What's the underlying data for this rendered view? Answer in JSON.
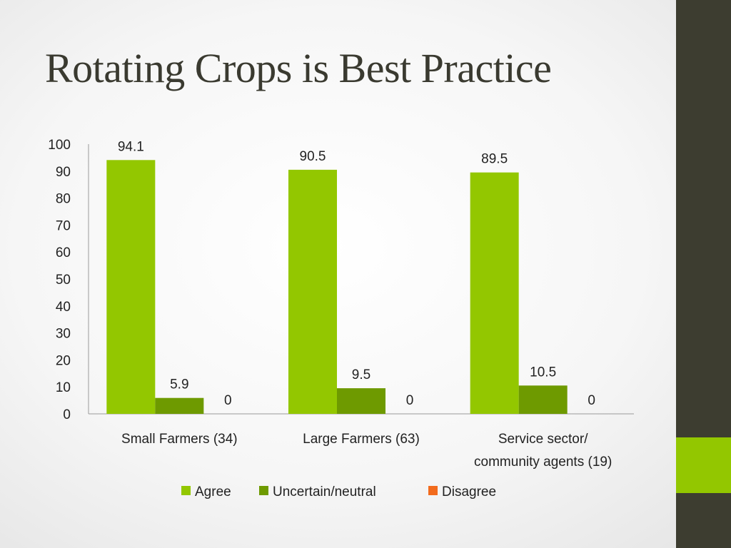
{
  "slide": {
    "title": "Rotating Crops is Best Practice"
  },
  "colors": {
    "sidebar": "#3d3d30",
    "sidebar_accent": "#93c700"
  },
  "chart_data": {
    "type": "bar",
    "title": "",
    "xlabel": "",
    "ylabel": "",
    "categories": [
      [
        "Small Farmers (34)"
      ],
      [
        "Large Farmers (63)"
      ],
      [
        "Service sector/",
        "community agents (19)"
      ]
    ],
    "series": [
      {
        "name": "Agree",
        "color": "#93c700",
        "values": [
          94.1,
          90.5,
          89.5
        ]
      },
      {
        "name": "Uncertain/neutral",
        "color": "#6e9a00",
        "values": [
          5.9,
          9.5,
          10.5
        ]
      },
      {
        "name": "Disagree",
        "color": "#f26b1d",
        "values": [
          0,
          0,
          0
        ]
      }
    ],
    "ylim": [
      0,
      100
    ],
    "yticks": [
      0,
      10,
      20,
      30,
      40,
      50,
      60,
      70,
      80,
      90,
      100
    ],
    "grid": false,
    "legend": "bottom"
  }
}
